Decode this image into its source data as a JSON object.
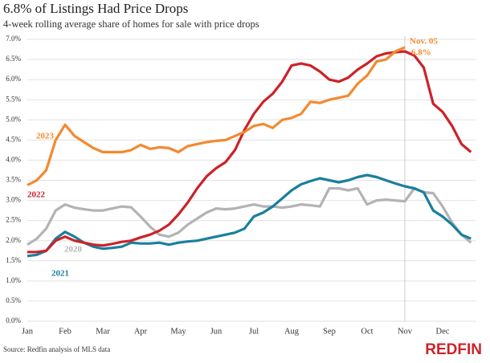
{
  "chart_data": {
    "type": "line",
    "title": "6.8% of Listings Had Price Drops",
    "subtitle": "4-week rolling average share of homes for sale with price drops",
    "source": "Source: Redfin analysis of MLS data",
    "logo": "REDFIN",
    "annotations": [
      "Nov. 05",
      "6.8%"
    ],
    "categories": [
      "Jan",
      null,
      null,
      null,
      "Feb",
      null,
      null,
      null,
      "Mar",
      null,
      null,
      null,
      "Apr",
      null,
      null,
      null,
      "May",
      null,
      null,
      null,
      "Jun",
      null,
      null,
      null,
      "Jul",
      null,
      null,
      null,
      "Aug",
      null,
      null,
      null,
      "Sep",
      null,
      null,
      null,
      "Oct",
      null,
      null,
      null,
      "Nov",
      null,
      null,
      null,
      "Dec",
      null,
      null,
      null
    ],
    "ylim": [
      0,
      7
    ],
    "yticks": [
      {
        "value": 0,
        "label": "0.0%"
      },
      {
        "value": 0.5,
        "label": "0.5%"
      },
      {
        "value": 1,
        "label": "1.0%"
      },
      {
        "value": 1.5,
        "label": "1.5%"
      },
      {
        "value": 2,
        "label": "2.0%"
      },
      {
        "value": 2.5,
        "label": "2.5%"
      },
      {
        "value": 3,
        "label": "3.0%"
      },
      {
        "value": 3.5,
        "label": "3.5%"
      },
      {
        "value": 4,
        "label": "4.0%"
      },
      {
        "value": 4.5,
        "label": "4.5%"
      },
      {
        "value": 5,
        "label": "5.0%"
      },
      {
        "value": 5.5,
        "label": "5.5%"
      },
      {
        "value": 6,
        "label": "6.0%"
      },
      {
        "value": 6.5,
        "label": "6.5%"
      },
      {
        "value": 7,
        "label": "7.0%"
      }
    ],
    "grid": true,
    "series": [
      {
        "name": "2020",
        "color": "#b3b3b3",
        "values": [
          1.9,
          2.05,
          2.3,
          2.75,
          2.9,
          2.82,
          2.78,
          2.75,
          2.75,
          2.8,
          2.85,
          2.83,
          2.6,
          2.35,
          2.15,
          2.1,
          2.2,
          2.4,
          2.55,
          2.7,
          2.8,
          2.78,
          2.8,
          2.85,
          2.9,
          2.85,
          2.85,
          2.82,
          2.85,
          2.9,
          2.88,
          2.85,
          3.3,
          3.3,
          3.25,
          3.3,
          2.9,
          3.0,
          3.02,
          3.0,
          2.98,
          3.3,
          3.2,
          3.18,
          2.85,
          2.45,
          2.15,
          1.95
        ]
      },
      {
        "name": "2021",
        "color": "#1a7f9e",
        "values": [
          1.62,
          1.65,
          1.75,
          2.05,
          2.22,
          2.1,
          1.95,
          1.85,
          1.8,
          1.82,
          1.85,
          1.95,
          1.93,
          1.93,
          1.95,
          1.9,
          1.95,
          1.98,
          2.0,
          2.05,
          2.1,
          2.15,
          2.2,
          2.3,
          2.6,
          2.7,
          2.85,
          3.05,
          3.25,
          3.4,
          3.48,
          3.55,
          3.5,
          3.45,
          3.5,
          3.58,
          3.63,
          3.58,
          3.5,
          3.42,
          3.35,
          3.3,
          3.2,
          2.75,
          2.6,
          2.4,
          2.15,
          2.05
        ]
      },
      {
        "name": "2022",
        "color": "#cc2229",
        "values": [
          1.72,
          1.72,
          1.75,
          2.0,
          2.1,
          2.0,
          1.95,
          1.9,
          1.88,
          1.92,
          1.97,
          2.0,
          2.08,
          2.15,
          2.25,
          2.4,
          2.65,
          2.95,
          3.3,
          3.6,
          3.8,
          3.95,
          4.25,
          4.75,
          5.15,
          5.45,
          5.65,
          5.95,
          6.35,
          6.4,
          6.35,
          6.2,
          6.0,
          5.95,
          6.05,
          6.25,
          6.4,
          6.58,
          6.65,
          6.68,
          6.7,
          6.6,
          6.3,
          5.4,
          5.2,
          4.85,
          4.4,
          4.2
        ]
      },
      {
        "name": "2023",
        "color": "#f28a30",
        "values": [
          3.38,
          3.5,
          3.75,
          4.5,
          4.88,
          4.6,
          4.45,
          4.3,
          4.2,
          4.2,
          4.2,
          4.25,
          4.38,
          4.28,
          4.32,
          4.3,
          4.2,
          4.35,
          4.4,
          4.45,
          4.48,
          4.5,
          4.6,
          4.7,
          4.85,
          4.9,
          4.8,
          5.0,
          5.05,
          5.15,
          5.45,
          5.42,
          5.5,
          5.55,
          5.6,
          5.9,
          6.1,
          6.45,
          6.5,
          6.7,
          6.8,
          null,
          null,
          null,
          null,
          null,
          null,
          null
        ]
      }
    ]
  }
}
